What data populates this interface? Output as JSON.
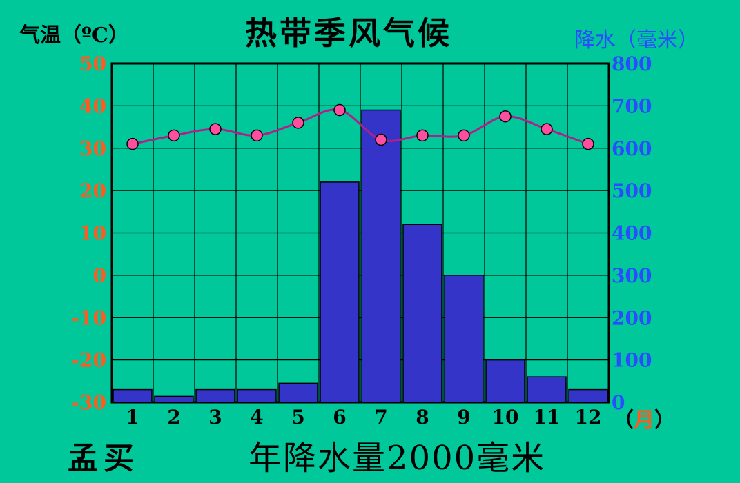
{
  "page": {
    "title": "热带季风气候",
    "city": "孟买",
    "annual_precip": "年降水量2000毫米"
  },
  "chart_data": {
    "type": "bar+line",
    "title": "热带季风气候",
    "xlabel_unit_open": "（",
    "xlabel_unit_word": "月",
    "xlabel_unit_close": "）",
    "ylabel_left": "气温（ºC）",
    "ylabel_right": "降水（毫米）",
    "categories": [
      "1",
      "2",
      "3",
      "4",
      "5",
      "6",
      "7",
      "8",
      "9",
      "10",
      "11",
      "12"
    ],
    "left_ticks": [
      "50",
      "40",
      "30",
      "20",
      "10",
      "0",
      "-10",
      "-20",
      "-30"
    ],
    "right_ticks": [
      "800",
      "700",
      "600",
      "500",
      "400",
      "300",
      "200",
      "100",
      "0"
    ],
    "temp_range": [
      -30,
      50
    ],
    "precip_range": [
      0,
      800
    ],
    "grid": true,
    "series": [
      {
        "kind": "bar",
        "axis": "right",
        "color": "#3434c8",
        "values": [
          30,
          14,
          30,
          30,
          45,
          520,
          690,
          420,
          300,
          100,
          60,
          30
        ]
      },
      {
        "kind": "line",
        "axis": "left",
        "color": "#b0208a",
        "marker_color": "#ff4ea0",
        "values": [
          31,
          33,
          34.5,
          33,
          36,
          39,
          32,
          33,
          33,
          37.5,
          34.5,
          31
        ]
      }
    ]
  }
}
